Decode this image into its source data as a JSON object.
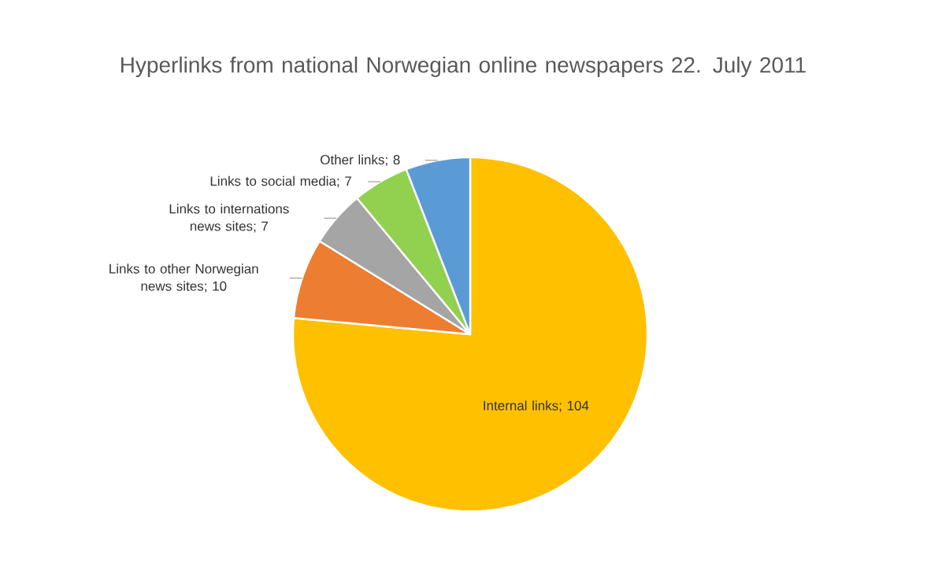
{
  "chart_data": {
    "type": "pie",
    "title": "Hyperlinks from national Norwegian online newspapers 22. July 2011",
    "categories": [
      "Internal links",
      "Links to other Norwegian news sites",
      "Links to internations news sites",
      "Links to social media",
      "Other links"
    ],
    "values": [
      104,
      10,
      7,
      7,
      8
    ],
    "colors": [
      "#ffc000",
      "#ed7d31",
      "#a5a5a5",
      "#92d050",
      "#5b9bd5"
    ],
    "legend": false,
    "value_labels": [
      "; 104",
      "; 10",
      "; 7",
      "; 7",
      "; 8"
    ]
  }
}
